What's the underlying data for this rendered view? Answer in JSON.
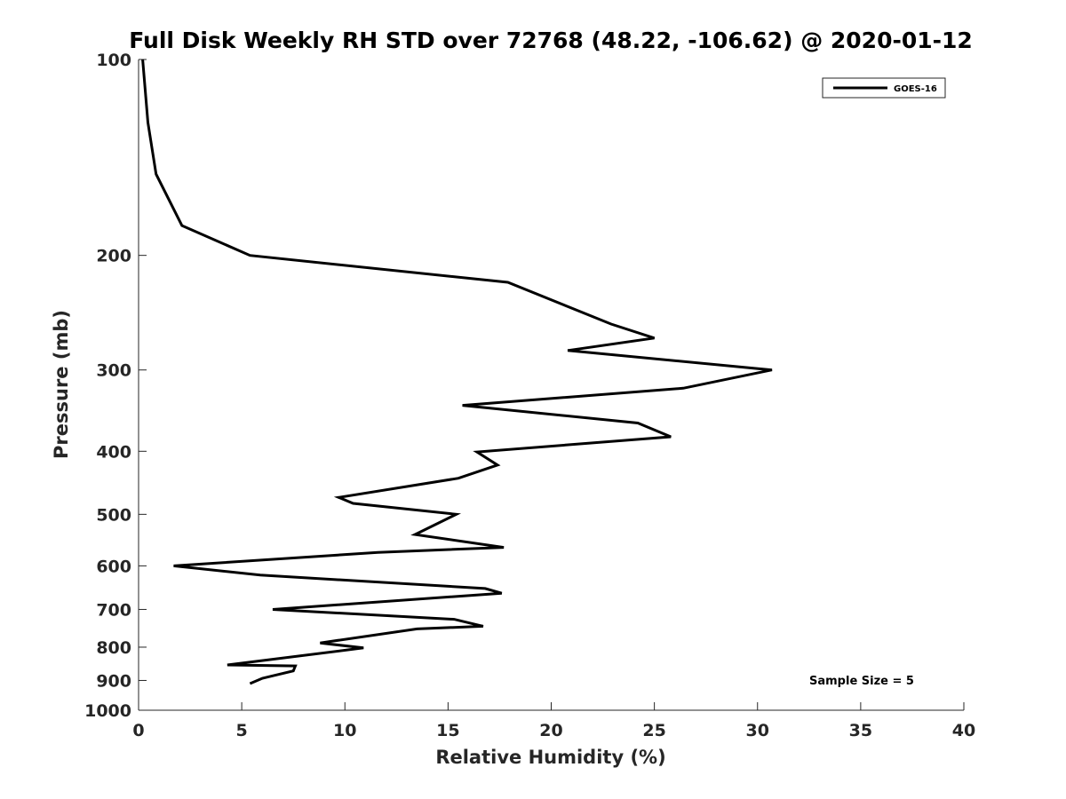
{
  "chart_data": {
    "type": "line",
    "title": "Full Disk Weekly RH STD over 72768 (48.22, -106.62) @ 2020-01-12",
    "xlabel": "Relative Humidity (%)",
    "ylabel": "Pressure (mb)",
    "xlim": [
      0,
      40
    ],
    "ylim": [
      100,
      1000
    ],
    "yscale": "log",
    "yinverted": true,
    "x_ticks": [
      0,
      5,
      10,
      15,
      20,
      25,
      30,
      35,
      40
    ],
    "y_ticks": [
      100,
      200,
      300,
      400,
      500,
      600,
      700,
      800,
      900,
      1000
    ],
    "grid": false,
    "legend_position": "top-right",
    "annotation": "Sample Size = 5",
    "series": [
      {
        "name": "GOES-16",
        "color": "#000000",
        "points": [
          [
            0.2,
            100
          ],
          [
            0.45,
            125
          ],
          [
            0.85,
            150
          ],
          [
            2.1,
            180
          ],
          [
            5.4,
            200
          ],
          [
            17.9,
            220
          ],
          [
            22.9,
            255
          ],
          [
            25.0,
            268
          ],
          [
            20.8,
            280
          ],
          [
            30.7,
            300
          ],
          [
            26.4,
            320
          ],
          [
            15.7,
            340
          ],
          [
            24.2,
            362
          ],
          [
            25.8,
            380
          ],
          [
            16.4,
            401
          ],
          [
            17.4,
            420
          ],
          [
            15.5,
            440
          ],
          [
            9.7,
            471
          ],
          [
            10.4,
            481
          ],
          [
            15.4,
            500
          ],
          [
            13.4,
            537
          ],
          [
            17.7,
            562
          ],
          [
            11.6,
            572
          ],
          [
            1.7,
            600
          ],
          [
            5.9,
            620
          ],
          [
            16.8,
            650
          ],
          [
            17.6,
            661
          ],
          [
            6.5,
            700
          ],
          [
            15.3,
            725
          ],
          [
            16.7,
            743
          ],
          [
            13.5,
            750
          ],
          [
            8.8,
            788
          ],
          [
            10.9,
            802
          ],
          [
            4.3,
            852
          ],
          [
            7.6,
            855
          ],
          [
            7.5,
            870
          ],
          [
            6.0,
            893
          ],
          [
            5.4,
            910
          ]
        ]
      }
    ]
  }
}
